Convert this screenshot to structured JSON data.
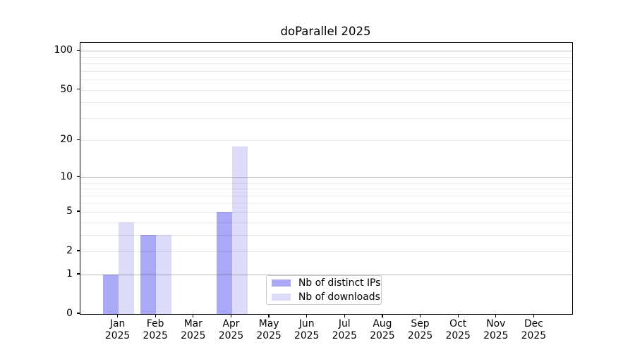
{
  "chart_data": {
    "type": "bar",
    "title": "doParallel 2025",
    "x": [
      "Jan",
      "Feb",
      "Mar",
      "Apr",
      "May",
      "Jun",
      "Jul",
      "Aug",
      "Sep",
      "Oct",
      "Nov",
      "Dec"
    ],
    "x_year": "2025",
    "series": [
      {
        "name": "Nb of distinct IPs",
        "color": "#a9a9f8",
        "values": [
          1,
          3,
          0,
          5,
          0,
          0,
          0,
          0,
          0,
          0,
          0,
          0
        ]
      },
      {
        "name": "Nb of downloads",
        "color": "#dcdcfa",
        "values": [
          4,
          3,
          0,
          18,
          0,
          0,
          0,
          0,
          0,
          0,
          0,
          0
        ]
      }
    ],
    "y_axis": {
      "scale": "log1p",
      "tick_values": [
        0,
        1,
        2,
        5,
        10,
        20,
        50,
        100
      ],
      "major_gridlines": [
        1,
        10,
        100
      ],
      "minor_gridlines": [
        2,
        3,
        4,
        5,
        6,
        7,
        8,
        9,
        20,
        30,
        40,
        50,
        60,
        70,
        80,
        90
      ],
      "range_top": 115
    },
    "grid": true,
    "legend_position": "inside lower center-left"
  }
}
